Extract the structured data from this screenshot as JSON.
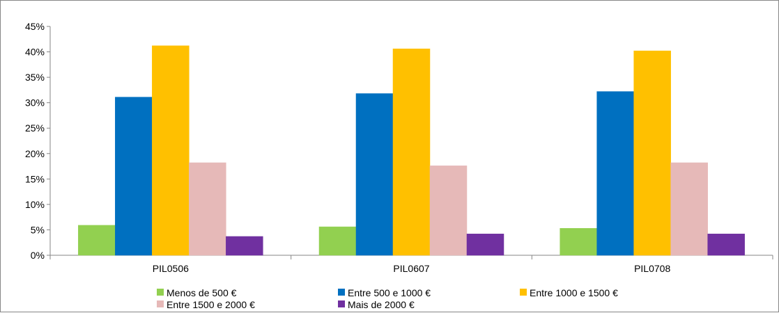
{
  "chart_data": {
    "type": "bar",
    "title": "",
    "xlabel": "",
    "ylabel": "",
    "categories": [
      "PIL0506",
      "PIL0607",
      "PIL0708"
    ],
    "ylim": [
      0,
      0.45
    ],
    "yticks": [
      "0%",
      "5%",
      "10%",
      "15%",
      "20%",
      "25%",
      "30%",
      "35%",
      "40%",
      "45%"
    ],
    "ytick_values": [
      0,
      0.05,
      0.1,
      0.15,
      0.2,
      0.25,
      0.3,
      0.35,
      0.4,
      0.45
    ],
    "grid": false,
    "legend_position": "bottom",
    "series": [
      {
        "name": "Menos de 500 €",
        "color": "#92d050",
        "values": [
          0.059,
          0.056,
          0.053
        ]
      },
      {
        "name": "Entre 500 e 1000 €",
        "color": "#0070c0",
        "values": [
          0.311,
          0.318,
          0.322
        ]
      },
      {
        "name": "Entre 1000 e 1500 €",
        "color": "#ffc000",
        "values": [
          0.412,
          0.406,
          0.402
        ]
      },
      {
        "name": "Entre 1500 e 2000 €",
        "color": "#e6b9b8",
        "values": [
          0.182,
          0.176,
          0.182
        ]
      },
      {
        "name": "Mais de 2000 €",
        "color": "#7030a0",
        "values": [
          0.037,
          0.042,
          0.042
        ]
      }
    ]
  }
}
